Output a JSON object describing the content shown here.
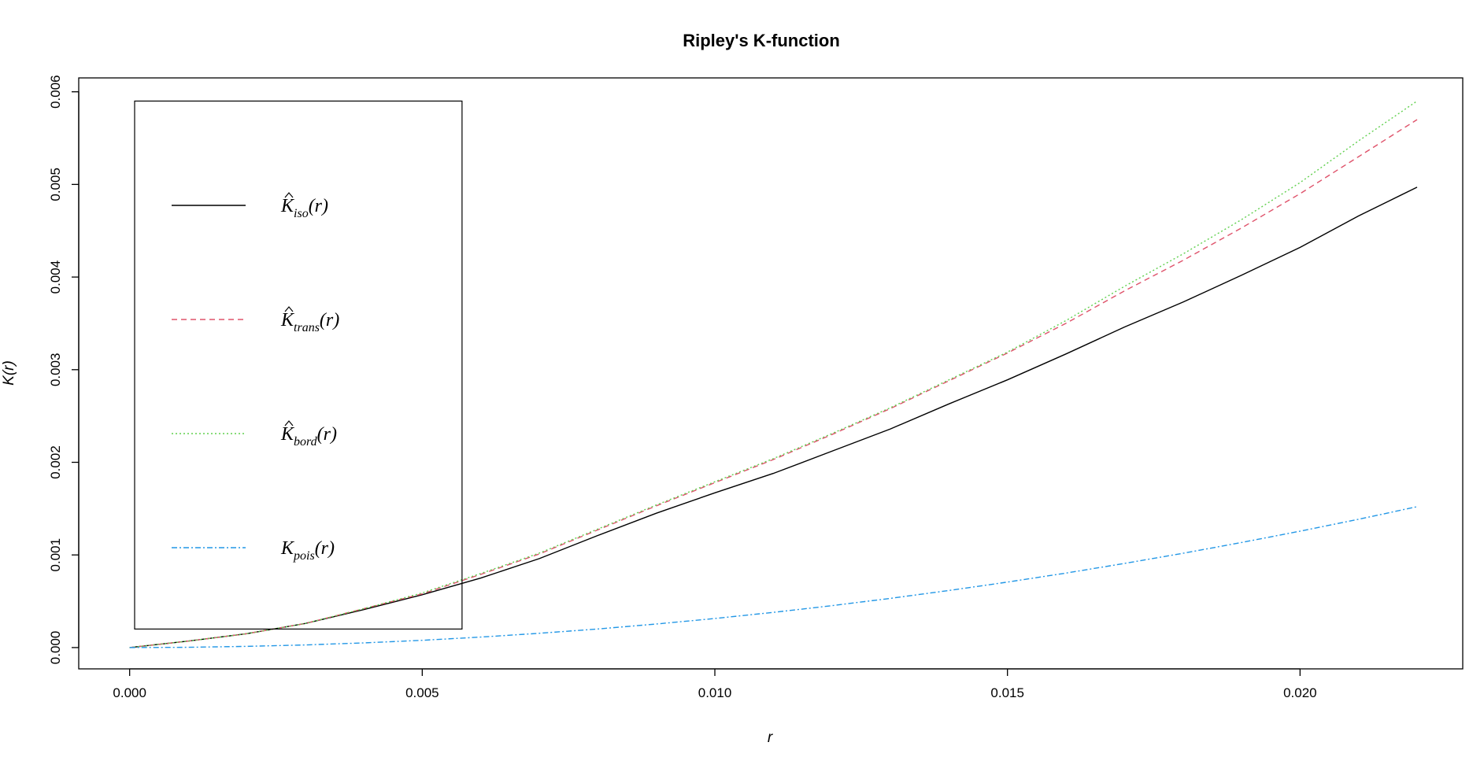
{
  "chart_data": {
    "type": "line",
    "title": "Ripley's K-function",
    "xlabel": "r",
    "ylabel": "K(r)",
    "xlim": [
      -0.00087,
      0.02278
    ],
    "ylim": [
      -0.00023,
      0.00615
    ],
    "xticks": [
      0.0,
      0.005,
      0.01,
      0.015,
      0.02
    ],
    "xtick_labels": [
      "0.000",
      "0.005",
      "0.010",
      "0.015",
      "0.020"
    ],
    "yticks": [
      0.0,
      0.001,
      0.002,
      0.003,
      0.004,
      0.005,
      0.006
    ],
    "ytick_labels": [
      "0.000",
      "0.001",
      "0.002",
      "0.003",
      "0.004",
      "0.005",
      "0.006"
    ],
    "grid": false,
    "legend_position": "top-left",
    "x": [
      0.0,
      0.001,
      0.002,
      0.003,
      0.004,
      0.005,
      0.006,
      0.007,
      0.008,
      0.009,
      0.01,
      0.011,
      0.012,
      0.013,
      0.014,
      0.015,
      0.016,
      0.017,
      0.018,
      0.019,
      0.02,
      0.021,
      0.022
    ],
    "series": [
      {
        "key": "iso",
        "legend_main": "K",
        "legend_sub": "iso",
        "legend_tail": "(r)",
        "color": "#000000",
        "dash": "",
        "values": [
          0.0,
          7e-05,
          0.00015,
          0.00026,
          0.00041,
          0.00057,
          0.00075,
          0.00096,
          0.00121,
          0.00145,
          0.00167,
          0.00188,
          0.00212,
          0.00236,
          0.00263,
          0.00289,
          0.00317,
          0.00346,
          0.00373,
          0.00402,
          0.00432,
          0.00466,
          0.00497
        ]
      },
      {
        "key": "trans",
        "legend_main": "K",
        "legend_sub": "trans",
        "legend_tail": "(r)",
        "color": "#DF536B",
        "dash": "7,5",
        "values": [
          0.0,
          7e-05,
          0.00015,
          0.00026,
          0.00042,
          0.00058,
          0.00079,
          0.00101,
          0.00127,
          0.00153,
          0.00178,
          0.00203,
          0.0023,
          0.00258,
          0.00288,
          0.00318,
          0.0035,
          0.00385,
          0.00418,
          0.00453,
          0.0049,
          0.0053,
          0.0057
        ]
      },
      {
        "key": "bord",
        "legend_main": "K",
        "legend_sub": "bord",
        "legend_tail": "(r)",
        "color": "#61D04F",
        "dash": "2,3",
        "values": [
          0.0,
          7e-05,
          0.00015,
          0.00026,
          0.00042,
          0.00059,
          0.0008,
          0.00102,
          0.00128,
          0.00154,
          0.00179,
          0.00204,
          0.00231,
          0.00259,
          0.00289,
          0.00319,
          0.00353,
          0.0039,
          0.00425,
          0.00462,
          0.00502,
          0.00547,
          0.0059
        ]
      },
      {
        "key": "pois",
        "legend_main": "K",
        "legend_sub": "pois",
        "legend_tail": "(r)",
        "color": "#2297E6",
        "dash": "7,3,2,3",
        "values": [
          0.0,
          3.1e-06,
          1.26e-05,
          2.83e-05,
          5.03e-05,
          7.85e-05,
          0.000113,
          0.000154,
          0.000201,
          0.000254,
          0.000314,
          0.00038,
          0.000452,
          0.000531,
          0.000616,
          0.000707,
          0.000804,
          0.000908,
          0.001018,
          0.001134,
          0.001257,
          0.001385,
          0.001521
        ]
      }
    ],
    "legend_frame_corners_data": [
      [
        -0.00087,
        0.0059
      ],
      [
        0.00568,
        0.0002
      ]
    ]
  }
}
